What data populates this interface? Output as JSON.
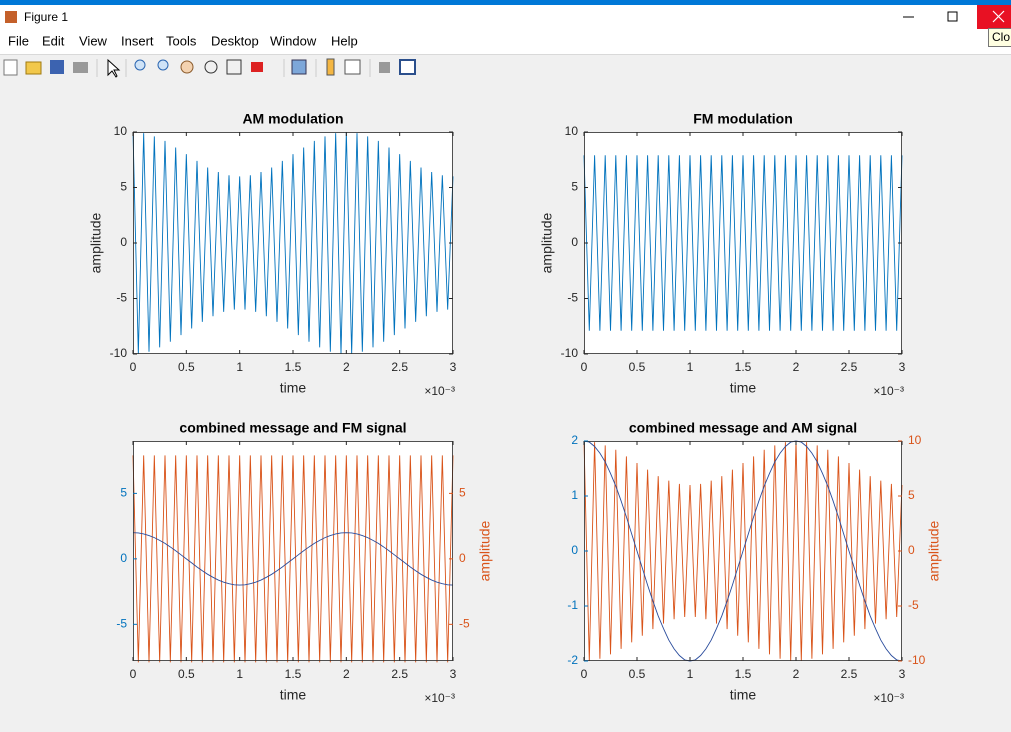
{
  "window": {
    "title": "Figure 1",
    "tooltip": "Clo",
    "menu": [
      "File",
      "Edit",
      "View",
      "Insert",
      "Tools",
      "Desktop",
      "Window",
      "Help"
    ]
  },
  "chart_data": [
    {
      "type": "line",
      "title": "AM modulation",
      "xlabel": "time",
      "ylabel": "amplitude",
      "x_exponent_label": "×10⁻³",
      "xlim": [
        0,
        3
      ],
      "xticks": [
        0,
        0.5,
        1,
        1.5,
        2,
        2.5,
        3
      ],
      "ylim": [
        -10,
        10
      ],
      "yticks": [
        -10,
        -5,
        0,
        5,
        10
      ],
      "box": true,
      "x": [
        0,
        0.05,
        0.1,
        0.15,
        0.2,
        0.25,
        0.3,
        0.35,
        0.4,
        0.45,
        0.5,
        0.55,
        0.6,
        0.65,
        0.7,
        0.75,
        0.8,
        0.85,
        0.9,
        0.95,
        1,
        1.05,
        1.1,
        1.15,
        1.2,
        1.25,
        1.3,
        1.35,
        1.4,
        1.45,
        1.5,
        1.55,
        1.6,
        1.65,
        1.7,
        1.75,
        1.8,
        1.85,
        1.9,
        1.95,
        2,
        2.05,
        2.1,
        2.15,
        2.2,
        2.25,
        2.3,
        2.35,
        2.4,
        2.45,
        2.5,
        2.55,
        2.6,
        2.65,
        2.7,
        2.75,
        2.8,
        2.85,
        2.9,
        2.95,
        3
      ],
      "series": [
        {
          "color": "#0072bd",
          "values": [
            10,
            -10,
            9.9,
            -9.8,
            9.6,
            -9.4,
            9.2,
            -8.9,
            8.6,
            -8.3,
            8,
            -7.7,
            7.4,
            -7.1,
            6.8,
            -6.6,
            6.4,
            -6.2,
            6.1,
            -6,
            6,
            -6,
            6.1,
            -6.2,
            6.4,
            -6.6,
            6.8,
            -7.1,
            7.4,
            -7.7,
            8,
            -8.3,
            8.6,
            -8.9,
            9.2,
            -9.4,
            9.6,
            -9.8,
            9.9,
            -10,
            10,
            -10,
            9.9,
            -9.8,
            9.6,
            -9.4,
            9.2,
            -8.9,
            8.6,
            -8.3,
            8,
            -7.7,
            7.4,
            -7.1,
            6.8,
            -6.6,
            6.4,
            -6.2,
            6.1,
            -6,
            6
          ]
        }
      ]
    },
    {
      "type": "line",
      "title": "FM modulation",
      "xlabel": "time",
      "ylabel": "amplitude",
      "x_exponent_label": "×10⁻³",
      "xlim": [
        0,
        3
      ],
      "xticks": [
        0,
        0.5,
        1,
        1.5,
        2,
        2.5,
        3
      ],
      "ylim": [
        -10,
        10
      ],
      "yticks": [
        -10,
        -5,
        0,
        5,
        10
      ],
      "box": true,
      "x": [
        0,
        0.05,
        0.1,
        0.15,
        0.2,
        0.25,
        0.3,
        0.35,
        0.4,
        0.45,
        0.5,
        0.55,
        0.6,
        0.65,
        0.7,
        0.75,
        0.8,
        0.85,
        0.9,
        0.95,
        1,
        1.05,
        1.1,
        1.15,
        1.2,
        1.25,
        1.3,
        1.35,
        1.4,
        1.45,
        1.5,
        1.55,
        1.6,
        1.65,
        1.7,
        1.75,
        1.8,
        1.85,
        1.9,
        1.95,
        2,
        2.05,
        2.1,
        2.15,
        2.2,
        2.25,
        2.3,
        2.35,
        2.4,
        2.45,
        2.5,
        2.55,
        2.6,
        2.65,
        2.7,
        2.75,
        2.8,
        2.85,
        2.9,
        2.95,
        3
      ],
      "series": [
        {
          "color": "#0072bd",
          "values": [
            7.9,
            -7.9,
            7.9,
            -7.9,
            7.9,
            -7.9,
            7.9,
            -7.9,
            7.9,
            -7.9,
            7.9,
            -7.9,
            7.9,
            -7.9,
            7.9,
            -7.9,
            7.9,
            -7.9,
            7.9,
            -7.9,
            7.9,
            -7.9,
            7.9,
            -7.9,
            7.9,
            -7.9,
            7.9,
            -7.9,
            7.9,
            -7.9,
            7.9,
            -7.9,
            7.9,
            -7.9,
            7.9,
            -7.9,
            7.9,
            -7.9,
            7.9,
            -7.9,
            7.9,
            -7.9,
            7.9,
            -7.9,
            7.9,
            -7.9,
            7.9,
            -7.9,
            7.9,
            -7.9,
            7.9,
            -7.9,
            7.9,
            -7.9,
            7.9,
            -7.9,
            7.9,
            -7.9,
            7.9,
            -7.9,
            7.9
          ]
        }
      ]
    },
    {
      "type": "line",
      "title": "combined message and FM signal",
      "xlabel": "time",
      "y2label": "amplitude",
      "x_exponent_label": "×10⁻³",
      "xlim": [
        0,
        3
      ],
      "xticks": [
        0,
        0.5,
        1,
        1.5,
        2,
        2.5,
        3
      ],
      "ylim": [
        -7.8,
        9
      ],
      "yticks": [
        -5,
        0,
        5
      ],
      "y_color": "#0072bd",
      "y2lim": [
        -7.8,
        9
      ],
      "y2ticks": [
        -5,
        0,
        5
      ],
      "y2_color": "#d95319",
      "x": [
        0,
        0.05,
        0.1,
        0.15,
        0.2,
        0.25,
        0.3,
        0.35,
        0.4,
        0.45,
        0.5,
        0.55,
        0.6,
        0.65,
        0.7,
        0.75,
        0.8,
        0.85,
        0.9,
        0.95,
        1,
        1.05,
        1.1,
        1.15,
        1.2,
        1.25,
        1.3,
        1.35,
        1.4,
        1.45,
        1.5,
        1.55,
        1.6,
        1.65,
        1.7,
        1.75,
        1.8,
        1.85,
        1.9,
        1.95,
        2,
        2.05,
        2.1,
        2.15,
        2.2,
        2.25,
        2.3,
        2.35,
        2.4,
        2.45,
        2.5,
        2.55,
        2.6,
        2.65,
        2.7,
        2.75,
        2.8,
        2.85,
        2.9,
        2.95,
        3
      ],
      "series": [
        {
          "color": "#d95319",
          "axis": "y2",
          "values": [
            7.9,
            -7.9,
            7.9,
            -7.9,
            7.9,
            -7.9,
            7.9,
            -7.9,
            7.9,
            -7.9,
            7.9,
            -7.9,
            7.9,
            -7.9,
            7.9,
            -7.9,
            7.9,
            -7.9,
            7.9,
            -7.9,
            7.9,
            -7.9,
            7.9,
            -7.9,
            7.9,
            -7.9,
            7.9,
            -7.9,
            7.9,
            -7.9,
            7.9,
            -7.9,
            7.9,
            -7.9,
            7.9,
            -7.9,
            7.9,
            -7.9,
            7.9,
            -7.9,
            7.9,
            -7.9,
            7.9,
            -7.9,
            7.9,
            -7.9,
            7.9,
            -7.9,
            7.9,
            -7.9,
            7.9,
            -7.9,
            7.9,
            -7.9,
            7.9,
            -7.9,
            7.9,
            -7.9,
            7.9,
            -7.9,
            7.9
          ]
        },
        {
          "color": "#2a4c9c",
          "values": [
            2,
            1.98,
            1.9,
            1.78,
            1.62,
            1.41,
            1.18,
            0.91,
            0.62,
            0.31,
            0,
            -0.31,
            -0.62,
            -0.91,
            -1.18,
            -1.41,
            -1.62,
            -1.78,
            -1.9,
            -1.98,
            -2,
            -1.98,
            -1.9,
            -1.78,
            -1.62,
            -1.41,
            -1.18,
            -0.91,
            -0.62,
            -0.31,
            0,
            0.31,
            0.62,
            0.91,
            1.18,
            1.41,
            1.62,
            1.78,
            1.9,
            1.98,
            2,
            1.98,
            1.9,
            1.78,
            1.62,
            1.41,
            1.18,
            0.91,
            0.62,
            0.31,
            0,
            -0.31,
            -0.62,
            -0.91,
            -1.18,
            -1.41,
            -1.62,
            -1.78,
            -1.9,
            -1.98,
            -2
          ]
        }
      ]
    },
    {
      "type": "line",
      "title": "combined message and AM signal",
      "xlabel": "time",
      "y2label": "amplitude",
      "x_exponent_label": "×10⁻³",
      "xlim": [
        0,
        3
      ],
      "xticks": [
        0,
        0.5,
        1,
        1.5,
        2,
        2.5,
        3
      ],
      "ylim": [
        -2,
        2
      ],
      "yticks": [
        -2,
        -1,
        0,
        1,
        2
      ],
      "y_color": "#0072bd",
      "y2lim": [
        -10,
        10
      ],
      "y2ticks": [
        -10,
        -5,
        0,
        5,
        10
      ],
      "y2_color": "#d95319",
      "x": [
        0,
        0.05,
        0.1,
        0.15,
        0.2,
        0.25,
        0.3,
        0.35,
        0.4,
        0.45,
        0.5,
        0.55,
        0.6,
        0.65,
        0.7,
        0.75,
        0.8,
        0.85,
        0.9,
        0.95,
        1,
        1.05,
        1.1,
        1.15,
        1.2,
        1.25,
        1.3,
        1.35,
        1.4,
        1.45,
        1.5,
        1.55,
        1.6,
        1.65,
        1.7,
        1.75,
        1.8,
        1.85,
        1.9,
        1.95,
        2,
        2.05,
        2.1,
        2.15,
        2.2,
        2.25,
        2.3,
        2.35,
        2.4,
        2.45,
        2.5,
        2.55,
        2.6,
        2.65,
        2.7,
        2.75,
        2.8,
        2.85,
        2.9,
        2.95,
        3
      ],
      "series": [
        {
          "color": "#d95319",
          "axis": "y2",
          "values": [
            10,
            -10,
            9.9,
            -9.8,
            9.6,
            -9.4,
            9.2,
            -8.9,
            8.6,
            -8.3,
            8,
            -7.7,
            7.4,
            -7.1,
            6.8,
            -6.6,
            6.4,
            -6.2,
            6.1,
            -6,
            6,
            -6,
            6.1,
            -6.2,
            6.4,
            -6.6,
            6.8,
            -7.1,
            7.4,
            -7.7,
            8,
            -8.3,
            8.6,
            -8.9,
            9.2,
            -9.4,
            9.6,
            -9.8,
            9.9,
            -10,
            10,
            -10,
            9.9,
            -9.8,
            9.6,
            -9.4,
            9.2,
            -8.9,
            8.6,
            -8.3,
            8,
            -7.7,
            7.4,
            -7.1,
            6.8,
            -6.6,
            6.4,
            -6.2,
            6.1,
            -6,
            6
          ]
        },
        {
          "color": "#2a4c9c",
          "values": [
            2,
            1.98,
            1.9,
            1.78,
            1.62,
            1.41,
            1.18,
            0.91,
            0.62,
            0.31,
            0,
            -0.31,
            -0.62,
            -0.91,
            -1.18,
            -1.41,
            -1.62,
            -1.78,
            -1.9,
            -1.98,
            -2,
            -1.98,
            -1.9,
            -1.78,
            -1.62,
            -1.41,
            -1.18,
            -0.91,
            -0.62,
            -0.31,
            0,
            0.31,
            0.62,
            0.91,
            1.18,
            1.41,
            1.62,
            1.78,
            1.9,
            1.98,
            2,
            1.98,
            1.9,
            1.78,
            1.62,
            1.41,
            1.18,
            0.91,
            0.62,
            0.31,
            0,
            -0.31,
            -0.62,
            -0.91,
            -1.18,
            -1.41,
            -1.62,
            -1.78,
            -1.9,
            -1.98,
            -2
          ]
        }
      ]
    }
  ]
}
